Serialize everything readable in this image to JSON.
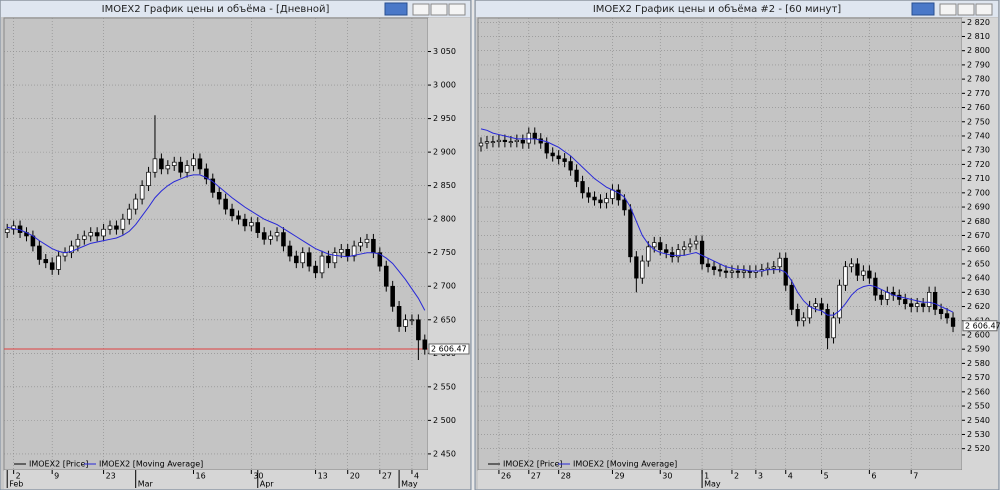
{
  "chart_data": [
    {
      "type": "candlestick",
      "title": "IMOEX2 График цены и объёма - [Дневной]",
      "grid": true,
      "xlim": [
        -0.5,
        65.5
      ],
      "ylim": [
        2426,
        3100
      ],
      "yticks": [
        {
          "value": 2450,
          "label": "2 450"
        },
        {
          "value": 2500,
          "label": "2 500"
        },
        {
          "value": 2550,
          "label": "2 550"
        },
        {
          "value": 2600,
          "label": "2 600"
        },
        {
          "value": 2650,
          "label": "2 650"
        },
        {
          "value": 2700,
          "label": "2 700"
        },
        {
          "value": 2750,
          "label": "2 750"
        },
        {
          "value": 2800,
          "label": "2 800"
        },
        {
          "value": 2850,
          "label": "2 850"
        },
        {
          "value": 2900,
          "label": "2 900"
        },
        {
          "value": 2950,
          "label": "2 950"
        },
        {
          "value": 3000,
          "label": "3 000"
        },
        {
          "value": 3050,
          "label": "3 050"
        }
      ],
      "xticks": [
        {
          "value": 1,
          "label": "2"
        },
        {
          "value": 7,
          "label": "9"
        },
        {
          "value": 15,
          "label": "23"
        },
        {
          "value": 29,
          "label": "16"
        },
        {
          "value": 38,
          "label": "30"
        },
        {
          "value": 48,
          "label": "13"
        },
        {
          "value": 53,
          "label": "20"
        },
        {
          "value": 58,
          "label": "27"
        },
        {
          "value": 63,
          "label": "4"
        }
      ],
      "month_ticks": [
        {
          "value": 0,
          "label": "Feb"
        },
        {
          "value": 20,
          "label": "Mar"
        },
        {
          "value": 39,
          "label": "Apr"
        },
        {
          "value": 61,
          "label": "May"
        }
      ],
      "last_price": {
        "value": 2606.47,
        "label": "2 606.47"
      },
      "price_line_color": "#e04040",
      "series": [
        {
          "name": "IMOEX2 [Price]",
          "color": "#000000",
          "open": [
            2780,
            2785,
            2790,
            2780,
            2775,
            2760,
            2740,
            2735,
            2725,
            2745,
            2750,
            2760,
            2770,
            2775,
            2780,
            2775,
            2785,
            2790,
            2785,
            2800,
            2815,
            2830,
            2850,
            2870,
            2890,
            2875,
            2880,
            2885,
            2870,
            2880,
            2890,
            2875,
            2860,
            2840,
            2830,
            2815,
            2805,
            2800,
            2790,
            2795,
            2780,
            2770,
            2775,
            2780,
            2760,
            2745,
            2735,
            2750,
            2730,
            2720,
            2745,
            2735,
            2750,
            2755,
            2745,
            2760,
            2765,
            2770,
            2750,
            2730,
            2700,
            2670,
            2640,
            2650,
            2650,
            2620
          ],
          "high": [
            2793,
            2798,
            2798,
            2788,
            2783,
            2768,
            2748,
            2743,
            2753,
            2758,
            2768,
            2778,
            2783,
            2788,
            2788,
            2793,
            2798,
            2798,
            2808,
            2823,
            2838,
            2858,
            2878,
            2955,
            2898,
            2888,
            2893,
            2893,
            2888,
            2898,
            2898,
            2883,
            2868,
            2848,
            2838,
            2823,
            2813,
            2808,
            2803,
            2803,
            2788,
            2783,
            2788,
            2788,
            2768,
            2753,
            2758,
            2758,
            2738,
            2753,
            2753,
            2758,
            2763,
            2763,
            2768,
            2773,
            2778,
            2778,
            2758,
            2738,
            2708,
            2678,
            2658,
            2658,
            2658,
            2628
          ],
          "low": [
            2772,
            2777,
            2772,
            2767,
            2752,
            2732,
            2727,
            2717,
            2717,
            2737,
            2742,
            2752,
            2762,
            2767,
            2767,
            2767,
            2777,
            2777,
            2777,
            2792,
            2807,
            2822,
            2842,
            2862,
            2867,
            2867,
            2872,
            2862,
            2862,
            2872,
            2867,
            2852,
            2832,
            2822,
            2807,
            2797,
            2792,
            2782,
            2782,
            2772,
            2762,
            2762,
            2767,
            2752,
            2737,
            2727,
            2727,
            2722,
            2712,
            2712,
            2727,
            2727,
            2742,
            2737,
            2737,
            2752,
            2757,
            2742,
            2722,
            2692,
            2662,
            2632,
            2632,
            2642,
            2590,
            2598
          ],
          "close": [
            2785,
            2790,
            2780,
            2775,
            2760,
            2740,
            2735,
            2725,
            2745,
            2750,
            2760,
            2770,
            2775,
            2780,
            2775,
            2785,
            2790,
            2785,
            2800,
            2815,
            2830,
            2850,
            2870,
            2890,
            2875,
            2880,
            2885,
            2870,
            2880,
            2890,
            2875,
            2860,
            2840,
            2830,
            2815,
            2805,
            2800,
            2790,
            2795,
            2780,
            2770,
            2775,
            2780,
            2760,
            2745,
            2735,
            2750,
            2730,
            2720,
            2745,
            2735,
            2750,
            2755,
            2745,
            2760,
            2765,
            2770,
            2750,
            2730,
            2700,
            2670,
            2640,
            2650,
            2650,
            2620,
            2606
          ]
        },
        {
          "name": "IMOEX2 [Moving Average]",
          "color": "#2828d8",
          "values": [
            2788,
            2786,
            2784,
            2780,
            2775,
            2768,
            2762,
            2756,
            2752,
            2750,
            2752,
            2756,
            2760,
            2764,
            2766,
            2768,
            2770,
            2772,
            2776,
            2782,
            2792,
            2805,
            2818,
            2832,
            2842,
            2850,
            2856,
            2860,
            2864,
            2866,
            2866,
            2862,
            2856,
            2848,
            2840,
            2832,
            2825,
            2818,
            2812,
            2806,
            2800,
            2796,
            2792,
            2786,
            2780,
            2774,
            2768,
            2762,
            2756,
            2752,
            2748,
            2746,
            2745,
            2744,
            2746,
            2748,
            2750,
            2750,
            2748,
            2742,
            2734,
            2722,
            2710,
            2696,
            2682,
            2664
          ]
        }
      ]
    },
    {
      "type": "candlestick",
      "title": "IMOEX2 График цены и объёма #2 - [60 минут]",
      "grid": true,
      "xlim": [
        -0.5,
        80.5
      ],
      "ylim": [
        2505,
        2823
      ],
      "yticks": [
        {
          "value": 2520,
          "label": "2 520"
        },
        {
          "value": 2530,
          "label": "2 530"
        },
        {
          "value": 2540,
          "label": "2 540"
        },
        {
          "value": 2550,
          "label": "2 550"
        },
        {
          "value": 2560,
          "label": "2 560"
        },
        {
          "value": 2570,
          "label": "2 570"
        },
        {
          "value": 2580,
          "label": "2 580"
        },
        {
          "value": 2590,
          "label": "2 590"
        },
        {
          "value": 2600,
          "label": "2 600"
        },
        {
          "value": 2610,
          "label": "2 610"
        },
        {
          "value": 2620,
          "label": "2 620"
        },
        {
          "value": 2630,
          "label": "2 630"
        },
        {
          "value": 2640,
          "label": "2 640"
        },
        {
          "value": 2650,
          "label": "2 650"
        },
        {
          "value": 2660,
          "label": "2 660"
        },
        {
          "value": 2670,
          "label": "2 670"
        },
        {
          "value": 2680,
          "label": "2 680"
        },
        {
          "value": 2690,
          "label": "2 690"
        },
        {
          "value": 2700,
          "label": "2 700"
        },
        {
          "value": 2710,
          "label": "2 710"
        },
        {
          "value": 2720,
          "label": "2 720"
        },
        {
          "value": 2730,
          "label": "2 730"
        },
        {
          "value": 2740,
          "label": "2 740"
        },
        {
          "value": 2750,
          "label": "2 750"
        },
        {
          "value": 2760,
          "label": "2 760"
        },
        {
          "value": 2770,
          "label": "2 770"
        },
        {
          "value": 2780,
          "label": "2 780"
        },
        {
          "value": 2790,
          "label": "2 790"
        },
        {
          "value": 2800,
          "label": "2 800"
        },
        {
          "value": 2810,
          "label": "2 810"
        },
        {
          "value": 2820,
          "label": "2 820"
        }
      ],
      "xticks": [
        {
          "value": 3,
          "label": "26"
        },
        {
          "value": 8,
          "label": "27"
        },
        {
          "value": 13,
          "label": "28"
        },
        {
          "value": 22,
          "label": "29"
        },
        {
          "value": 30,
          "label": "30"
        },
        {
          "value": 37,
          "label": "1"
        },
        {
          "value": 42,
          "label": "2"
        },
        {
          "value": 46,
          "label": "3"
        },
        {
          "value": 51,
          "label": "4"
        },
        {
          "value": 57,
          "label": "5"
        },
        {
          "value": 65,
          "label": "6"
        },
        {
          "value": 72,
          "label": "7"
        }
      ],
      "month_ticks": [
        {
          "value": 37,
          "label": "May"
        }
      ],
      "last_price": {
        "value": 2606.47,
        "label": "2 606.47"
      },
      "series": [
        {
          "name": "IMOEX2 [Price]",
          "color": "#000000",
          "open": [
            2733,
            2735,
            2736,
            2736,
            2737,
            2736,
            2736,
            2737,
            2735,
            2742,
            2738,
            2735,
            2728,
            2726,
            2724,
            2722,
            2716,
            2708,
            2700,
            2697,
            2695,
            2693,
            2696,
            2702,
            2695,
            2688,
            2655,
            2640,
            2652,
            2662,
            2665,
            2660,
            2658,
            2655,
            2660,
            2662,
            2664,
            2666,
            2650,
            2648,
            2646,
            2645,
            2644,
            2645,
            2644,
            2645,
            2644,
            2645,
            2646,
            2647,
            2648,
            2654,
            2635,
            2618,
            2610,
            2612,
            2620,
            2622,
            2618,
            2598,
            2612,
            2635,
            2648,
            2650,
            2642,
            2645,
            2640,
            2628,
            2625,
            2630,
            2628,
            2625,
            2622,
            2620,
            2622,
            2620,
            2630,
            2618,
            2615,
            2612
          ],
          "high": [
            2739,
            2740,
            2740,
            2741,
            2741,
            2740,
            2741,
            2741,
            2746,
            2746,
            2742,
            2739,
            2732,
            2730,
            2728,
            2726,
            2720,
            2712,
            2704,
            2701,
            2699,
            2700,
            2706,
            2706,
            2699,
            2692,
            2659,
            2656,
            2666,
            2669,
            2669,
            2664,
            2662,
            2664,
            2666,
            2668,
            2670,
            2670,
            2654,
            2652,
            2650,
            2649,
            2649,
            2649,
            2649,
            2649,
            2649,
            2650,
            2651,
            2652,
            2658,
            2658,
            2639,
            2622,
            2616,
            2624,
            2626,
            2626,
            2622,
            2616,
            2639,
            2652,
            2654,
            2654,
            2649,
            2649,
            2644,
            2632,
            2634,
            2634,
            2632,
            2629,
            2626,
            2626,
            2626,
            2634,
            2634,
            2622,
            2619,
            2616
          ],
          "low": [
            2729,
            2731,
            2732,
            2732,
            2732,
            2732,
            2732,
            2731,
            2731,
            2734,
            2731,
            2724,
            2722,
            2720,
            2718,
            2712,
            2704,
            2696,
            2693,
            2691,
            2689,
            2689,
            2692,
            2691,
            2684,
            2651,
            2630,
            2636,
            2648,
            2658,
            2656,
            2654,
            2651,
            2651,
            2656,
            2658,
            2660,
            2646,
            2644,
            2642,
            2641,
            2640,
            2640,
            2640,
            2640,
            2640,
            2640,
            2641,
            2642,
            2643,
            2644,
            2631,
            2614,
            2606,
            2606,
            2608,
            2616,
            2614,
            2590,
            2594,
            2608,
            2631,
            2644,
            2638,
            2638,
            2636,
            2624,
            2621,
            2621,
            2624,
            2621,
            2618,
            2616,
            2616,
            2616,
            2616,
            2614,
            2611,
            2608,
            2602
          ],
          "close": [
            2735,
            2736,
            2736,
            2737,
            2736,
            2736,
            2737,
            2735,
            2742,
            2738,
            2735,
            2728,
            2726,
            2724,
            2722,
            2716,
            2708,
            2700,
            2697,
            2695,
            2693,
            2696,
            2702,
            2695,
            2688,
            2655,
            2640,
            2652,
            2662,
            2665,
            2660,
            2658,
            2655,
            2660,
            2662,
            2664,
            2666,
            2650,
            2648,
            2646,
            2645,
            2644,
            2645,
            2644,
            2645,
            2644,
            2645,
            2646,
            2647,
            2648,
            2654,
            2635,
            2618,
            2610,
            2612,
            2620,
            2622,
            2618,
            2598,
            2612,
            2635,
            2648,
            2650,
            2642,
            2645,
            2640,
            2628,
            2625,
            2630,
            2628,
            2625,
            2622,
            2620,
            2622,
            2620,
            2630,
            2618,
            2615,
            2612,
            2606
          ]
        },
        {
          "name": "IMOEX2 [Moving Average]",
          "color": "#2828d8",
          "values": [
            2745,
            2744,
            2742,
            2741,
            2740,
            2739,
            2738,
            2738,
            2738,
            2738,
            2737,
            2736,
            2734,
            2732,
            2729,
            2726,
            2722,
            2718,
            2714,
            2710,
            2707,
            2704,
            2702,
            2700,
            2697,
            2690,
            2680,
            2670,
            2664,
            2660,
            2658,
            2657,
            2656,
            2656,
            2656,
            2657,
            2658,
            2656,
            2654,
            2652,
            2650,
            2648,
            2647,
            2646,
            2646,
            2645,
            2645,
            2645,
            2646,
            2646,
            2646,
            2644,
            2638,
            2630,
            2624,
            2620,
            2618,
            2617,
            2614,
            2614,
            2617,
            2622,
            2628,
            2632,
            2634,
            2635,
            2634,
            2632,
            2630,
            2628,
            2627,
            2626,
            2625,
            2624,
            2623,
            2623,
            2622,
            2620,
            2618,
            2616
          ]
        }
      ]
    }
  ]
}
